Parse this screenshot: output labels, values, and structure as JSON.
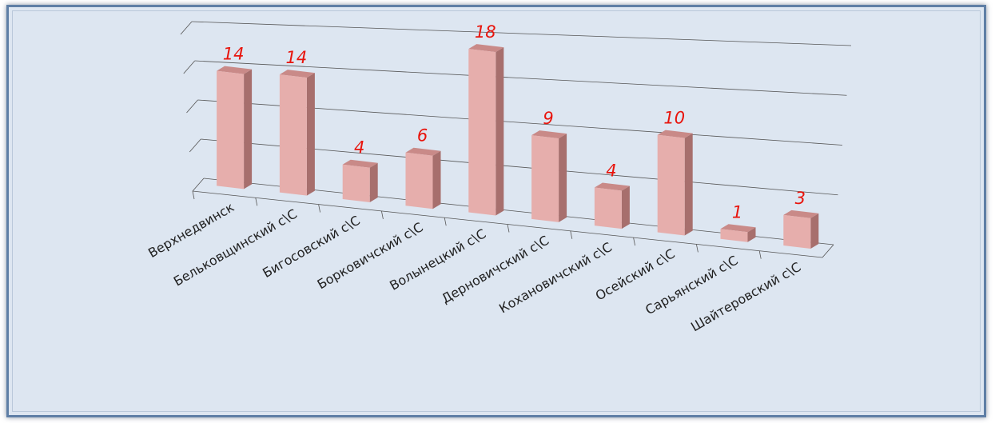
{
  "chart_data": {
    "type": "bar",
    "title": "",
    "categories": [
      "Верхнедвинск",
      "Бельковщинский с\\С",
      "Бигосовский с\\С",
      "Борковичский с\\С",
      "Волынецкий с\\С",
      "Дерновичский с\\С",
      "Кохановичский с\\С",
      "Осейский с\\С",
      "Сарьянский с\\С",
      "Шайтеровский с\\С"
    ],
    "series": [
      {
        "values": [
          14,
          14,
          4,
          6,
          18,
          9,
          4,
          10,
          1,
          3
        ]
      }
    ],
    "data_labels": [
      "14",
      "14",
      "4",
      "6",
      "18",
      "9",
      "4",
      "10",
      "1",
      "3"
    ],
    "ylim": [
      0,
      18
    ],
    "grid": true,
    "colors": {
      "bar_front": "#e6aeac",
      "bar_side": "#a76f6d",
      "bar_top": "#c98a88",
      "labels": "#e8140c",
      "background": "#dde6f1",
      "border": "#5f7fa6"
    }
  }
}
